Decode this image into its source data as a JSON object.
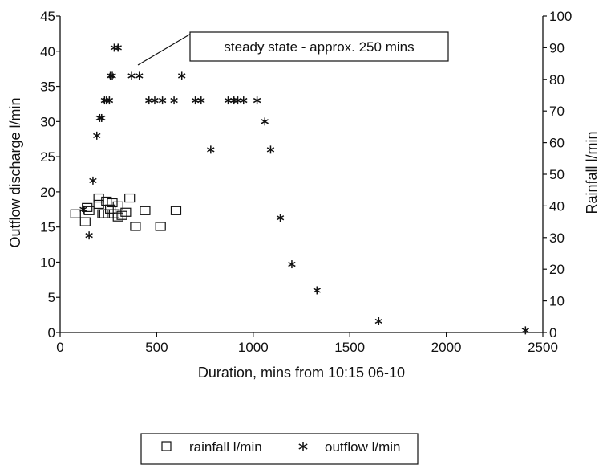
{
  "chart_data": {
    "type": "scatter",
    "xlabel": "Duration, mins from 10:15 06-10",
    "ylabel": "Outflow discharge l/min",
    "y2label": "Rainfall l/min",
    "xlim": [
      0,
      2500
    ],
    "ylim": [
      0,
      45
    ],
    "y2lim": [
      0,
      100
    ],
    "x_ticks": [
      "0",
      "500",
      "1000",
      "1500",
      "2000",
      "2500"
    ],
    "y_ticks": [
      "0",
      "5",
      "10",
      "15",
      "20",
      "25",
      "30",
      "35",
      "40",
      "45"
    ],
    "y2_ticks": [
      "0",
      "10",
      "20",
      "30",
      "40",
      "50",
      "60",
      "70",
      "80",
      "90",
      "100"
    ],
    "grid": false,
    "legend_position": "bottom",
    "annotation": "steady state - approx. 250 mins",
    "series": [
      {
        "name": "rainfall l/min",
        "axis": "right",
        "marker": "square",
        "points": [
          [
            80,
            37.5
          ],
          [
            130,
            35
          ],
          [
            140,
            39.5
          ],
          [
            150,
            38.5
          ],
          [
            200,
            42.5
          ],
          [
            200,
            40.5
          ],
          [
            220,
            37.5
          ],
          [
            230,
            37.5
          ],
          [
            240,
            41.5
          ],
          [
            250,
            37.5
          ],
          [
            260,
            39
          ],
          [
            270,
            41
          ],
          [
            280,
            37.5
          ],
          [
            300,
            40
          ],
          [
            300,
            36.5
          ],
          [
            320,
            37
          ],
          [
            340,
            38
          ],
          [
            360,
            42.5
          ],
          [
            390,
            33.5
          ],
          [
            440,
            38.5
          ],
          [
            520,
            33.5
          ],
          [
            600,
            38.5
          ]
        ]
      },
      {
        "name": "outflow l/min",
        "axis": "left",
        "marker": "asterisk",
        "points": [
          [
            120,
            17.5
          ],
          [
            150,
            13.8
          ],
          [
            170,
            21.6
          ],
          [
            190,
            28
          ],
          [
            205,
            30.5
          ],
          [
            215,
            30.5
          ],
          [
            230,
            33
          ],
          [
            240,
            33
          ],
          [
            255,
            33
          ],
          [
            260,
            36.5
          ],
          [
            270,
            36.5
          ],
          [
            280,
            40.5
          ],
          [
            300,
            40.5
          ],
          [
            370,
            36.5
          ],
          [
            410,
            36.5
          ],
          [
            460,
            33
          ],
          [
            490,
            33
          ],
          [
            530,
            33
          ],
          [
            590,
            33
          ],
          [
            630,
            36.5
          ],
          [
            700,
            33
          ],
          [
            730,
            33
          ],
          [
            780,
            26
          ],
          [
            870,
            33
          ],
          [
            900,
            33
          ],
          [
            920,
            33
          ],
          [
            950,
            33
          ],
          [
            1020,
            33
          ],
          [
            1060,
            30
          ],
          [
            1090,
            26
          ],
          [
            1140,
            16.3
          ],
          [
            1200,
            9.7
          ],
          [
            1330,
            6
          ],
          [
            1650,
            1.6
          ],
          [
            2410,
            0.3
          ]
        ]
      }
    ]
  }
}
